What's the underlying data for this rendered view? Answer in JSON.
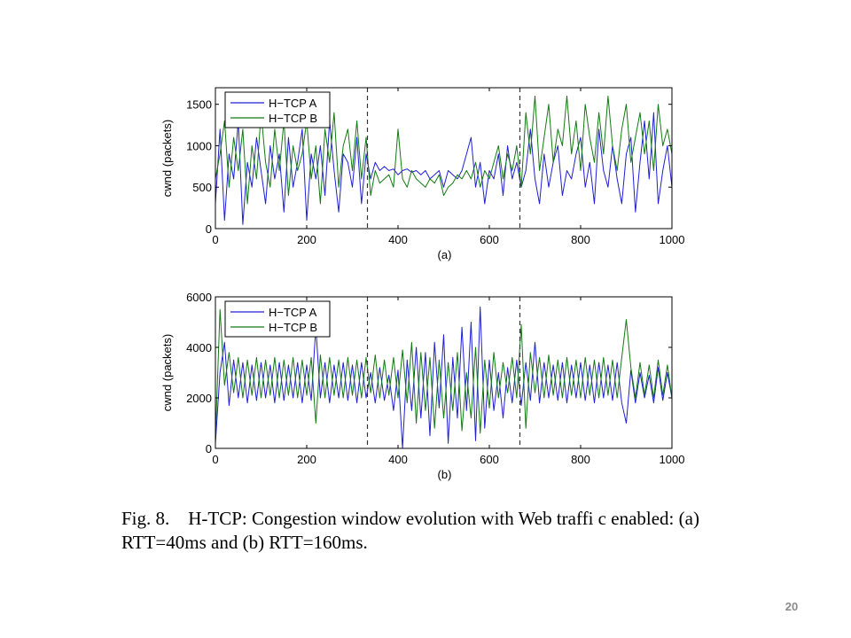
{
  "caption": {
    "line1": "Fig. 8.    H-TCP: Congestion window evolution with Web traffi c enabled: (a)",
    "line2": "RTT=40ms and (b) RTT=160ms."
  },
  "page_number": "20",
  "chart_data": [
    {
      "type": "line",
      "panel_label": "(a)",
      "title": "",
      "xlabel": "",
      "ylabel": "cwnd (packets)",
      "xlim": [
        0,
        1000
      ],
      "ylim": [
        0,
        1700
      ],
      "xticks": [
        0,
        200,
        400,
        600,
        800,
        1000
      ],
      "yticks": [
        0,
        500,
        1000,
        1500
      ],
      "grid": false,
      "legend_position": "top-left",
      "vlines": [
        333,
        667
      ],
      "series": [
        {
          "name": "H−TCP A",
          "color": "#1f1fd6",
          "x": [
            0,
            10,
            20,
            30,
            40,
            50,
            60,
            70,
            80,
            90,
            100,
            110,
            120,
            130,
            140,
            150,
            160,
            170,
            180,
            190,
            200,
            210,
            220,
            230,
            240,
            250,
            260,
            270,
            280,
            290,
            300,
            310,
            320,
            330,
            340,
            350,
            360,
            370,
            380,
            390,
            400,
            410,
            420,
            430,
            440,
            450,
            460,
            470,
            480,
            490,
            500,
            510,
            520,
            530,
            540,
            550,
            560,
            570,
            580,
            590,
            600,
            610,
            620,
            630,
            640,
            650,
            660,
            670,
            680,
            690,
            700,
            710,
            720,
            730,
            740,
            750,
            760,
            770,
            780,
            790,
            800,
            810,
            820,
            830,
            840,
            850,
            860,
            870,
            880,
            890,
            900,
            910,
            920,
            930,
            940,
            950,
            960,
            970,
            980,
            990,
            1000
          ],
          "values": [
            300,
            1200,
            100,
            900,
            600,
            1300,
            50,
            800,
            500,
            1100,
            700,
            300,
            1000,
            600,
            900,
            200,
            1100,
            500,
            800,
            1200,
            100,
            900,
            600,
            1000,
            400,
            1300,
            700,
            200,
            900,
            800,
            500,
            1100,
            300,
            900,
            600,
            800,
            700,
            750,
            700,
            720,
            650,
            700,
            720,
            680,
            700,
            650,
            700,
            600,
            650,
            700,
            500,
            700,
            650,
            600,
            700,
            900,
            1100,
            500,
            800,
            300,
            700,
            600,
            900,
            400,
            1000,
            600,
            800,
            500,
            700,
            1200,
            600,
            300,
            900,
            500,
            800,
            1000,
            400,
            700,
            600,
            900,
            1100,
            500,
            800,
            300,
            1200,
            700,
            500,
            1000,
            600,
            300,
            900,
            1100,
            200,
            800,
            1300,
            600,
            1400,
            300,
            700,
            1000,
            500
          ]
        },
        {
          "name": "H−TCP B",
          "color": "#127a12",
          "x": [
            0,
            10,
            20,
            30,
            40,
            50,
            60,
            70,
            80,
            90,
            100,
            110,
            120,
            130,
            140,
            150,
            160,
            170,
            180,
            190,
            200,
            210,
            220,
            230,
            240,
            250,
            260,
            270,
            280,
            290,
            300,
            310,
            320,
            330,
            340,
            350,
            360,
            370,
            380,
            390,
            400,
            410,
            420,
            430,
            440,
            450,
            460,
            470,
            480,
            490,
            500,
            510,
            520,
            530,
            540,
            550,
            560,
            570,
            580,
            590,
            600,
            610,
            620,
            630,
            640,
            650,
            660,
            670,
            680,
            690,
            700,
            710,
            720,
            730,
            740,
            750,
            760,
            770,
            780,
            790,
            800,
            810,
            820,
            830,
            840,
            850,
            860,
            870,
            880,
            890,
            900,
            910,
            920,
            930,
            940,
            950,
            960,
            970,
            980,
            990,
            1000
          ],
          "values": [
            600,
            900,
            1300,
            500,
            1100,
            700,
            1200,
            300,
            1000,
            600,
            1400,
            800,
            500,
            1200,
            700,
            1300,
            400,
            1000,
            700,
            900,
            1300,
            600,
            1000,
            300,
            1200,
            800,
            1400,
            500,
            1000,
            1200,
            700,
            1300,
            600,
            1100,
            400,
            700,
            550,
            600,
            650,
            500,
            1200,
            600,
            500,
            700,
            600,
            550,
            500,
            600,
            550,
            650,
            400,
            500,
            550,
            650,
            600,
            700,
            600,
            800,
            500,
            700,
            600,
            800,
            1000,
            600,
            900,
            700,
            1000,
            500,
            1400,
            900,
            1600,
            700,
            1100,
            1500,
            800,
            1200,
            1000,
            1600,
            900,
            1300,
            700,
            1500,
            1100,
            800,
            1400,
            900,
            1600,
            1000,
            700,
            1200,
            1500,
            800,
            1100,
            1400,
            900,
            1300,
            700,
            1500,
            1000,
            1200,
            900
          ]
        }
      ]
    },
    {
      "type": "line",
      "panel_label": "(b)",
      "title": "",
      "xlabel": "",
      "ylabel": "cwnd (packets)",
      "xlim": [
        0,
        1000
      ],
      "ylim": [
        0,
        6000
      ],
      "xticks": [
        0,
        200,
        400,
        600,
        800,
        1000
      ],
      "yticks": [
        0,
        2000,
        4000,
        6000
      ],
      "grid": false,
      "legend_position": "top-left",
      "vlines": [
        333,
        667
      ],
      "series": [
        {
          "name": "H−TCP A",
          "color": "#1f1fd6",
          "x": [
            0,
            10,
            20,
            30,
            40,
            50,
            60,
            70,
            80,
            90,
            100,
            110,
            120,
            130,
            140,
            150,
            160,
            170,
            180,
            190,
            200,
            210,
            220,
            230,
            240,
            250,
            260,
            270,
            280,
            290,
            300,
            310,
            320,
            330,
            340,
            350,
            360,
            370,
            380,
            390,
            400,
            410,
            420,
            430,
            440,
            450,
            460,
            470,
            480,
            490,
            500,
            510,
            520,
            530,
            540,
            550,
            560,
            570,
            580,
            590,
            600,
            610,
            620,
            630,
            640,
            650,
            660,
            670,
            680,
            690,
            700,
            710,
            720,
            730,
            740,
            750,
            760,
            770,
            780,
            790,
            800,
            810,
            820,
            830,
            840,
            850,
            860,
            870,
            880,
            890,
            900,
            910,
            920,
            930,
            940,
            950,
            960,
            970,
            980,
            990,
            1000
          ],
          "values": [
            200,
            3000,
            4200,
            1700,
            3500,
            2000,
            3400,
            1800,
            3300,
            1900,
            3400,
            2000,
            3300,
            1800,
            3400,
            1900,
            3300,
            2000,
            3400,
            1800,
            3300,
            1900,
            4800,
            2000,
            3400,
            1800,
            3300,
            2000,
            3400,
            1900,
            3300,
            1800,
            3400,
            2000,
            3000,
            1800,
            3200,
            1900,
            2900,
            1500,
            3100,
            0,
            3500,
            1500,
            4000,
            1200,
            3800,
            500,
            4200,
            1600,
            4500,
            200,
            3600,
            1200,
            4800,
            1500,
            5000,
            300,
            5600,
            800,
            3500,
            1500,
            3000,
            1200,
            3200,
            1800,
            3500,
            1700,
            3400,
            1900,
            4200,
            1800,
            3400,
            2000,
            3300,
            1900,
            3400,
            1800,
            3300,
            2000,
            3400,
            1900,
            3300,
            1800,
            3400,
            2000,
            3300,
            1900,
            3400,
            1800,
            1000,
            3100,
            1800,
            3000,
            2000,
            2900,
            1800,
            3200,
            1900,
            3000,
            2000
          ]
        },
        {
          "name": "H−TCP B",
          "color": "#127a12",
          "x": [
            0,
            10,
            20,
            30,
            40,
            50,
            60,
            70,
            80,
            90,
            100,
            110,
            120,
            130,
            140,
            150,
            160,
            170,
            180,
            190,
            200,
            210,
            220,
            230,
            240,
            250,
            260,
            270,
            280,
            290,
            300,
            310,
            320,
            330,
            340,
            350,
            360,
            370,
            380,
            390,
            400,
            410,
            420,
            430,
            440,
            450,
            460,
            470,
            480,
            490,
            500,
            510,
            520,
            530,
            540,
            550,
            560,
            570,
            580,
            590,
            600,
            610,
            620,
            630,
            640,
            650,
            660,
            670,
            680,
            690,
            700,
            710,
            720,
            730,
            740,
            750,
            760,
            770,
            780,
            790,
            800,
            810,
            820,
            830,
            840,
            850,
            860,
            870,
            880,
            890,
            900,
            910,
            920,
            930,
            940,
            950,
            960,
            970,
            980,
            990,
            1000
          ],
          "values": [
            400,
            5500,
            2500,
            3800,
            2200,
            3600,
            2000,
            3500,
            2100,
            3600,
            2000,
            3500,
            2100,
            3600,
            2000,
            3500,
            2100,
            3600,
            2000,
            3500,
            2100,
            3600,
            1000,
            3700,
            2000,
            3600,
            2100,
            3500,
            2000,
            3600,
            2100,
            3500,
            2000,
            3600,
            2200,
            3700,
            2000,
            3500,
            2100,
            3600,
            2000,
            3900,
            1800,
            4200,
            1000,
            3800,
            1500,
            3600,
            800,
            3500,
            1200,
            3400,
            1500,
            3800,
            700,
            3000,
            1200,
            4000,
            600,
            3500,
            1600,
            3800,
            2000,
            3400,
            2200,
            3600,
            2000,
            4900,
            800,
            3800,
            2200,
            3600,
            2000,
            3700,
            2100,
            3500,
            2000,
            3600,
            2100,
            3500,
            2000,
            3600,
            2100,
            3500,
            2000,
            3600,
            2100,
            3500,
            2000,
            3600,
            5100,
            3200,
            2000,
            3400,
            2100,
            3300,
            2000,
            3500,
            2100,
            3300,
            2000
          ]
        }
      ]
    }
  ]
}
